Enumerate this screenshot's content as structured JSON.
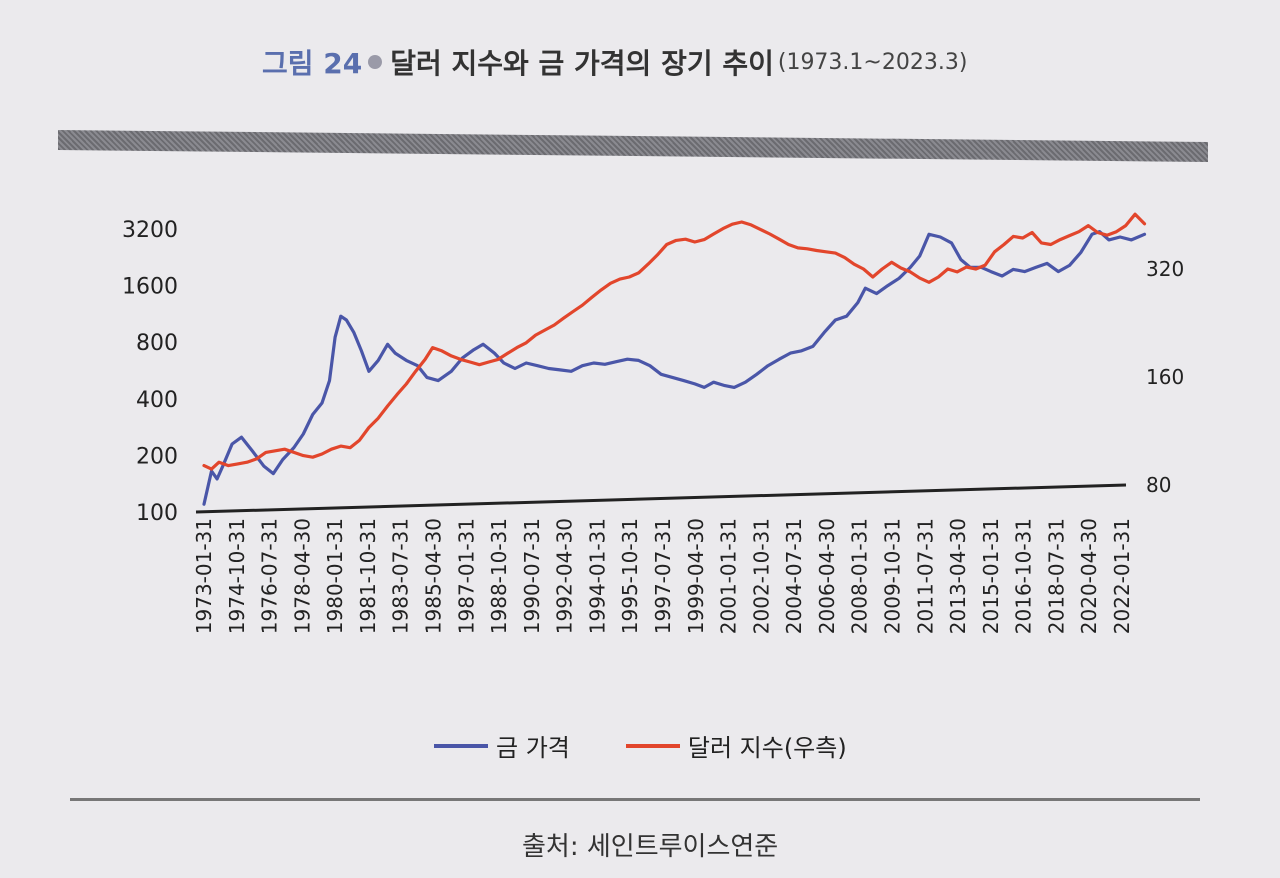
{
  "figure": {
    "label": "그림 24",
    "title": "달러 지수와 금 가격의 장기 추이",
    "range": "(1973.1~2023.3)"
  },
  "source": "출처: 세인트루이스연준",
  "legend": [
    {
      "name": "금 가격",
      "color": "#4a56a8"
    },
    {
      "name": "달러 지수(우측)",
      "color": "#e2462c"
    }
  ],
  "chart_data": {
    "type": "line",
    "title": "달러 지수와 금 가격의 장기 추이",
    "grid": false,
    "legend_position": "bottom",
    "x_ticks": [
      "1973-01-31",
      "1974-10-31",
      "1976-07-31",
      "1978-04-30",
      "1980-01-31",
      "1981-10-31",
      "1983-07-31",
      "1985-04-30",
      "1987-01-31",
      "1988-10-31",
      "1990-07-31",
      "1992-04-30",
      "1994-01-31",
      "1995-10-31",
      "1997-07-31",
      "1999-04-30",
      "2001-01-31",
      "2002-10-31",
      "2004-07-31",
      "2006-04-30",
      "2008-01-31",
      "2009-10-31",
      "2011-07-31",
      "2013-04-30",
      "2015-01-31",
      "2016-10-31",
      "2018-07-31",
      "2020-04-30",
      "2022-01-31"
    ],
    "y_left": {
      "scale": "log",
      "ticks": [
        100,
        200,
        400,
        800,
        1600,
        3200
      ],
      "range": [
        100,
        3600
      ]
    },
    "y_right": {
      "scale": "log",
      "ticks": [
        80,
        160,
        320
      ],
      "range": [
        80,
        720
      ]
    },
    "series": [
      {
        "name": "금 가격",
        "axis": "left",
        "color": "#4a56a8",
        "points": [
          [
            1973.0,
            110
          ],
          [
            1973.4,
            165
          ],
          [
            1973.7,
            150
          ],
          [
            1974.0,
            175
          ],
          [
            1974.5,
            230
          ],
          [
            1975.0,
            250
          ],
          [
            1975.6,
            210
          ],
          [
            1976.2,
            175
          ],
          [
            1976.7,
            160
          ],
          [
            1977.2,
            190
          ],
          [
            1977.8,
            220
          ],
          [
            1978.3,
            260
          ],
          [
            1978.8,
            330
          ],
          [
            1979.3,
            380
          ],
          [
            1979.7,
            500
          ],
          [
            1980.0,
            850
          ],
          [
            1980.3,
            1100
          ],
          [
            1980.6,
            1050
          ],
          [
            1981.0,
            900
          ],
          [
            1981.4,
            720
          ],
          [
            1981.8,
            560
          ],
          [
            1982.3,
            640
          ],
          [
            1982.8,
            780
          ],
          [
            1983.2,
            700
          ],
          [
            1983.8,
            640
          ],
          [
            1984.4,
            600
          ],
          [
            1984.9,
            520
          ],
          [
            1985.5,
            500
          ],
          [
            1986.2,
            560
          ],
          [
            1986.8,
            660
          ],
          [
            1987.4,
            730
          ],
          [
            1987.9,
            780
          ],
          [
            1988.5,
            700
          ],
          [
            1989.0,
            620
          ],
          [
            1989.6,
            580
          ],
          [
            1990.2,
            620
          ],
          [
            1990.8,
            600
          ],
          [
            1991.4,
            580
          ],
          [
            1992.0,
            570
          ],
          [
            1992.6,
            560
          ],
          [
            1993.2,
            600
          ],
          [
            1993.8,
            620
          ],
          [
            1994.4,
            610
          ],
          [
            1995.0,
            630
          ],
          [
            1995.6,
            650
          ],
          [
            1996.2,
            640
          ],
          [
            1996.8,
            600
          ],
          [
            1997.4,
            540
          ],
          [
            1998.0,
            520
          ],
          [
            1998.6,
            500
          ],
          [
            1999.2,
            480
          ],
          [
            1999.7,
            460
          ],
          [
            2000.2,
            490
          ],
          [
            2000.8,
            470
          ],
          [
            2001.3,
            460
          ],
          [
            2001.9,
            490
          ],
          [
            2002.5,
            540
          ],
          [
            2003.1,
            600
          ],
          [
            2003.7,
            650
          ],
          [
            2004.3,
            700
          ],
          [
            2004.9,
            720
          ],
          [
            2005.5,
            760
          ],
          [
            2006.1,
            900
          ],
          [
            2006.7,
            1050
          ],
          [
            2007.3,
            1100
          ],
          [
            2007.9,
            1300
          ],
          [
            2008.3,
            1550
          ],
          [
            2008.9,
            1450
          ],
          [
            2009.5,
            1600
          ],
          [
            2010.1,
            1750
          ],
          [
            2010.7,
            2000
          ],
          [
            2011.2,
            2300
          ],
          [
            2011.7,
            3000
          ],
          [
            2012.3,
            2900
          ],
          [
            2012.9,
            2700
          ],
          [
            2013.4,
            2200
          ],
          [
            2013.9,
            2000
          ],
          [
            2014.5,
            2000
          ],
          [
            2015.0,
            1900
          ],
          [
            2015.6,
            1800
          ],
          [
            2016.2,
            1950
          ],
          [
            2016.8,
            1900
          ],
          [
            2017.4,
            2000
          ],
          [
            2018.0,
            2100
          ],
          [
            2018.6,
            1900
          ],
          [
            2019.2,
            2050
          ],
          [
            2019.8,
            2400
          ],
          [
            2020.4,
            3000
          ],
          [
            2020.8,
            3100
          ],
          [
            2021.3,
            2800
          ],
          [
            2021.9,
            2900
          ],
          [
            2022.5,
            2800
          ],
          [
            2023.2,
            3000
          ]
        ]
      },
      {
        "name": "달러 지수(우측)",
        "axis": "right",
        "color": "#e2462c",
        "points": [
          [
            1973.0,
            90
          ],
          [
            1973.4,
            88
          ],
          [
            1973.8,
            92
          ],
          [
            1974.3,
            90
          ],
          [
            1974.8,
            91
          ],
          [
            1975.3,
            92
          ],
          [
            1975.8,
            94
          ],
          [
            1976.3,
            98
          ],
          [
            1976.8,
            99
          ],
          [
            1977.3,
            100
          ],
          [
            1977.8,
            98
          ],
          [
            1978.3,
            96
          ],
          [
            1978.8,
            95
          ],
          [
            1979.3,
            97
          ],
          [
            1979.8,
            100
          ],
          [
            1980.3,
            102
          ],
          [
            1980.8,
            101
          ],
          [
            1981.3,
            106
          ],
          [
            1981.8,
            115
          ],
          [
            1982.3,
            122
          ],
          [
            1982.8,
            132
          ],
          [
            1983.3,
            142
          ],
          [
            1983.8,
            152
          ],
          [
            1984.3,
            165
          ],
          [
            1984.8,
            178
          ],
          [
            1985.2,
            192
          ],
          [
            1985.7,
            188
          ],
          [
            1986.2,
            182
          ],
          [
            1986.7,
            178
          ],
          [
            1987.2,
            175
          ],
          [
            1987.7,
            172
          ],
          [
            1988.2,
            175
          ],
          [
            1988.7,
            178
          ],
          [
            1989.2,
            185
          ],
          [
            1989.7,
            192
          ],
          [
            1990.2,
            198
          ],
          [
            1990.7,
            208
          ],
          [
            1991.2,
            215
          ],
          [
            1991.7,
            222
          ],
          [
            1992.2,
            232
          ],
          [
            1992.7,
            242
          ],
          [
            1993.2,
            252
          ],
          [
            1993.7,
            265
          ],
          [
            1994.2,
            278
          ],
          [
            1994.7,
            290
          ],
          [
            1995.2,
            298
          ],
          [
            1995.7,
            302
          ],
          [
            1996.2,
            310
          ],
          [
            1996.7,
            328
          ],
          [
            1997.2,
            348
          ],
          [
            1997.7,
            372
          ],
          [
            1998.2,
            382
          ],
          [
            1998.7,
            385
          ],
          [
            1999.2,
            378
          ],
          [
            1999.7,
            384
          ],
          [
            2000.2,
            398
          ],
          [
            2000.7,
            412
          ],
          [
            2001.2,
            424
          ],
          [
            2001.7,
            430
          ],
          [
            2002.2,
            422
          ],
          [
            2002.7,
            410
          ],
          [
            2003.2,
            398
          ],
          [
            2003.7,
            385
          ],
          [
            2004.2,
            372
          ],
          [
            2004.7,
            364
          ],
          [
            2005.2,
            362
          ],
          [
            2005.7,
            358
          ],
          [
            2006.2,
            355
          ],
          [
            2006.7,
            352
          ],
          [
            2007.2,
            342
          ],
          [
            2007.7,
            328
          ],
          [
            2008.2,
            318
          ],
          [
            2008.7,
            302
          ],
          [
            2009.2,
            318
          ],
          [
            2009.7,
            332
          ],
          [
            2010.2,
            320
          ],
          [
            2010.7,
            312
          ],
          [
            2011.2,
            300
          ],
          [
            2011.7,
            292
          ],
          [
            2012.2,
            302
          ],
          [
            2012.7,
            318
          ],
          [
            2013.2,
            312
          ],
          [
            2013.7,
            322
          ],
          [
            2014.2,
            318
          ],
          [
            2014.7,
            326
          ],
          [
            2015.2,
            355
          ],
          [
            2015.7,
            372
          ],
          [
            2016.2,
            392
          ],
          [
            2016.7,
            388
          ],
          [
            2017.2,
            402
          ],
          [
            2017.7,
            376
          ],
          [
            2018.2,
            372
          ],
          [
            2018.7,
            384
          ],
          [
            2019.2,
            394
          ],
          [
            2019.7,
            404
          ],
          [
            2020.2,
            420
          ],
          [
            2020.7,
            402
          ],
          [
            2021.2,
            395
          ],
          [
            2021.7,
            404
          ],
          [
            2022.2,
            420
          ],
          [
            2022.7,
            452
          ],
          [
            2023.2,
            425
          ]
        ]
      }
    ]
  }
}
